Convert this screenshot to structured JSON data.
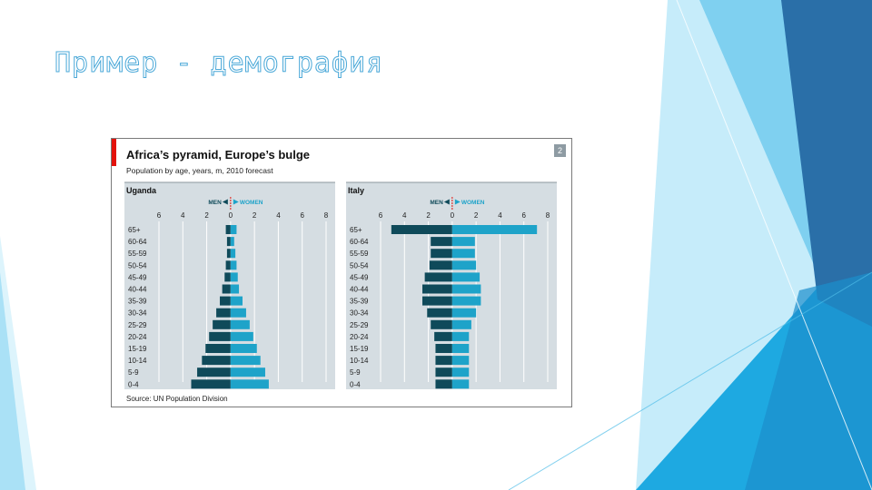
{
  "slide": {
    "title": "Пример - демография",
    "colors": {
      "light_blue": "#c6ecfa",
      "mid_blue": "#7fd0f0",
      "bright_blue": "#1ea9e1",
      "dark_blue": "#2a6fa8"
    }
  },
  "figure": {
    "title": "Africa’s pyramid, Europe’s bulge",
    "subtitle": "Population by age, years, m, 2010 forecast",
    "badge": "2",
    "source": "Source: UN Population Division",
    "legend": {
      "men": "MEN",
      "women": "WOMEN"
    }
  },
  "chart_data": [
    {
      "type": "bar",
      "title": "Uganda",
      "xticks": [
        "6",
        "4",
        "2",
        "0",
        "2",
        "4",
        "6",
        "8"
      ],
      "xlim": [
        -6,
        8
      ],
      "categories": [
        "65+",
        "60-64",
        "55-59",
        "50-54",
        "45-49",
        "40-44",
        "35-39",
        "30-34",
        "25-29",
        "20-24",
        "15-19",
        "10-14",
        "5-9",
        "0-4"
      ],
      "series": [
        {
          "name": "MEN",
          "color": "#0f4a5a",
          "values": [
            0.4,
            0.3,
            0.3,
            0.4,
            0.5,
            0.7,
            0.9,
            1.2,
            1.5,
            1.8,
            2.1,
            2.4,
            2.8,
            3.3
          ]
        },
        {
          "name": "WOMEN",
          "color": "#1ea3c9",
          "values": [
            0.5,
            0.3,
            0.4,
            0.5,
            0.6,
            0.7,
            1.0,
            1.3,
            1.6,
            1.9,
            2.2,
            2.5,
            2.9,
            3.2
          ]
        }
      ],
      "grid": true
    },
    {
      "type": "bar",
      "title": "Italy",
      "xticks": [
        "6",
        "4",
        "2",
        "0",
        "2",
        "4",
        "6",
        "8"
      ],
      "xlim": [
        -6,
        8
      ],
      "categories": [
        "65+",
        "60-64",
        "55-59",
        "50-54",
        "45-49",
        "40-44",
        "35-39",
        "30-34",
        "25-29",
        "20-24",
        "15-19",
        "10-14",
        "5-9",
        "0-4"
      ],
      "series": [
        {
          "name": "MEN",
          "color": "#0f4a5a",
          "values": [
            5.1,
            1.8,
            1.8,
            1.9,
            2.3,
            2.5,
            2.5,
            2.1,
            1.8,
            1.5,
            1.4,
            1.4,
            1.4,
            1.4
          ]
        },
        {
          "name": "WOMEN",
          "color": "#1ea3c9",
          "values": [
            7.1,
            1.9,
            1.9,
            2.0,
            2.3,
            2.4,
            2.4,
            2.0,
            1.6,
            1.4,
            1.4,
            1.4,
            1.4,
            1.4
          ]
        }
      ],
      "grid": true
    }
  ]
}
